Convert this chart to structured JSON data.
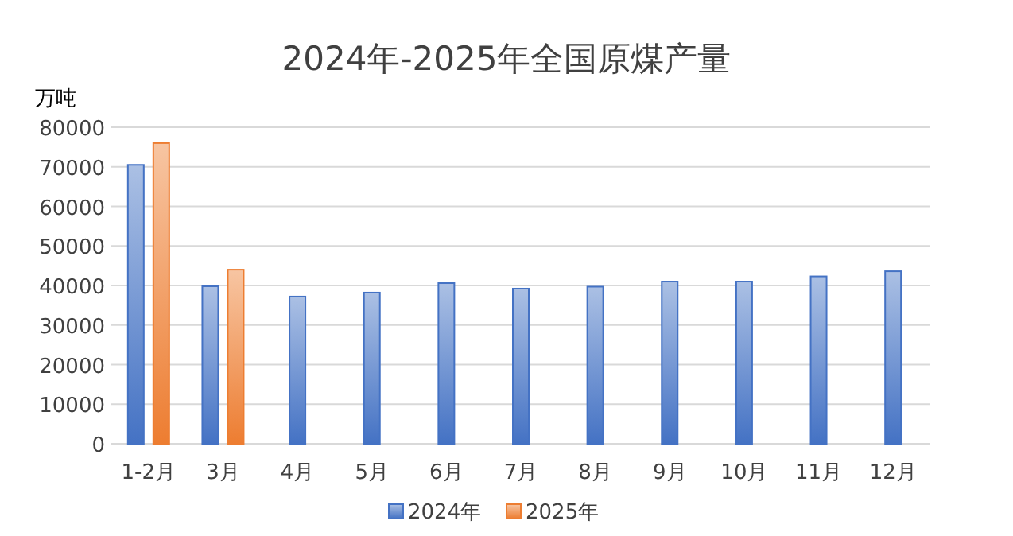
{
  "chart_data": {
    "type": "bar",
    "title": "2024年-2025年全国原煤产量",
    "ylabel": "万吨",
    "categories": [
      "1-2月",
      "3月",
      "4月",
      "5月",
      "6月",
      "7月",
      "8月",
      "9月",
      "10月",
      "11月",
      "12月"
    ],
    "series": [
      {
        "name": "2024年",
        "color": "#4472c4",
        "values": [
          70500,
          39800,
          37200,
          38200,
          40600,
          39200,
          39700,
          41000,
          41000,
          42300,
          43600
        ]
      },
      {
        "name": "2025年",
        "color": "#ed7d31",
        "values": [
          76000,
          44000,
          null,
          null,
          null,
          null,
          null,
          null,
          null,
          null,
          null
        ]
      }
    ],
    "ylim": [
      0,
      80000
    ],
    "yticks": [
      0,
      10000,
      20000,
      30000,
      40000,
      50000,
      60000,
      70000,
      80000
    ],
    "grid": "y",
    "legend": "bottom"
  }
}
